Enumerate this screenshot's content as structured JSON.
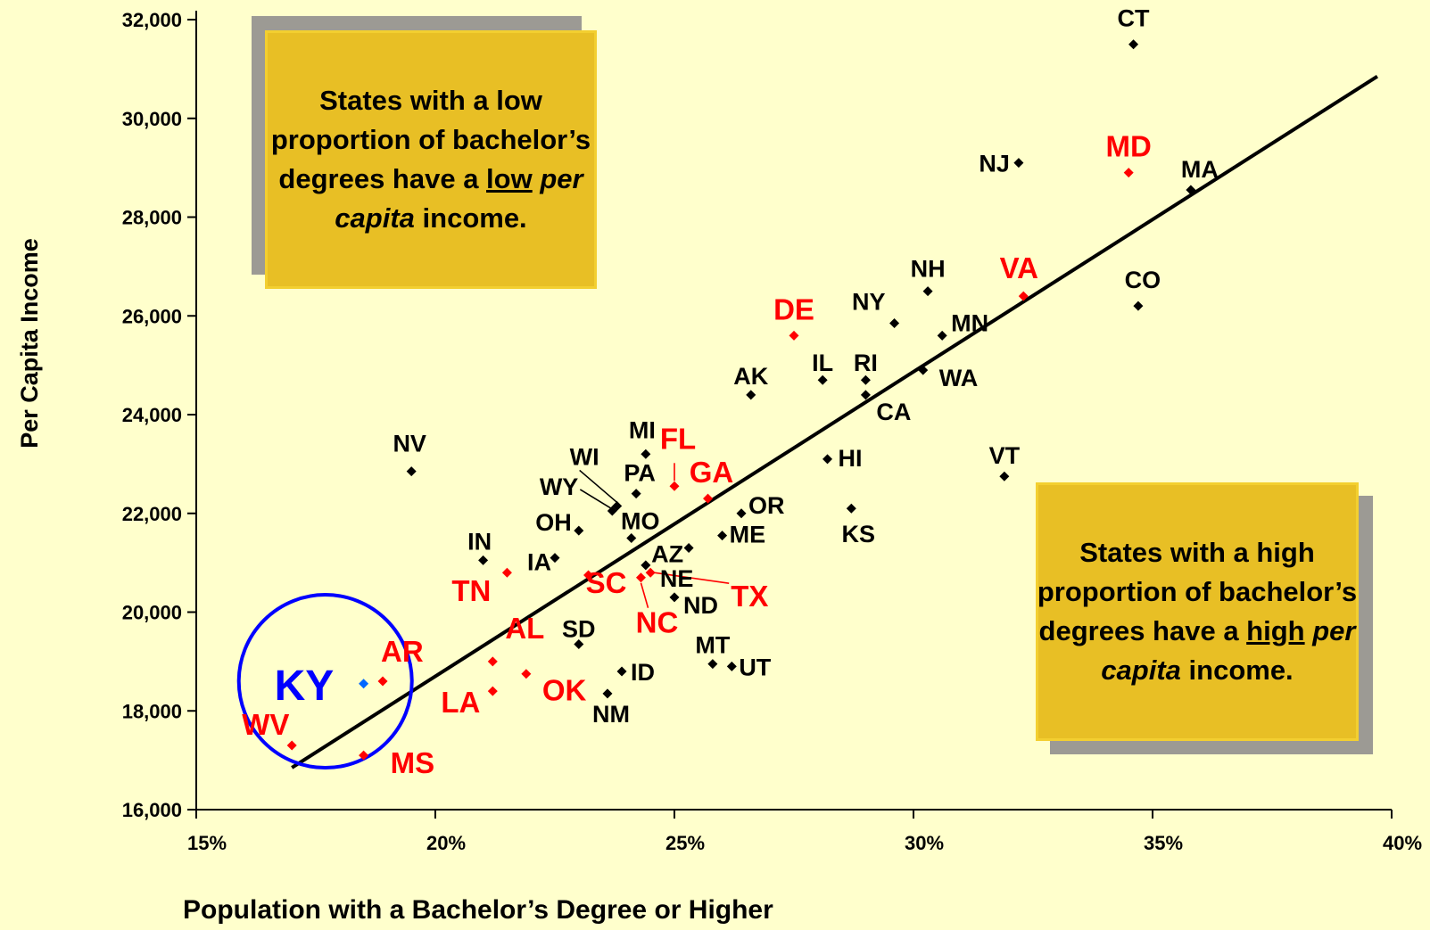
{
  "chart_data": {
    "type": "scatter",
    "xlabel": "Population with a Bachelor’s Degree or Higher",
    "ylabel": "Per  Capita  Income",
    "xlim": [
      15,
      40
    ],
    "ylim": [
      16000,
      32000
    ],
    "x_ticks": [
      15,
      20,
      25,
      30,
      35,
      40
    ],
    "x_tick_labels": [
      "15%",
      "20%",
      "25%",
      "30%",
      "35%",
      "40%"
    ],
    "y_ticks": [
      16000,
      18000,
      20000,
      22000,
      24000,
      26000,
      28000,
      30000,
      32000
    ],
    "y_tick_labels": [
      "16,000",
      "18,000",
      "20,000",
      "22,000",
      "24,000",
      "26,000",
      "28,000",
      "30,000",
      "32,000"
    ],
    "grid": false,
    "trendline": {
      "x": [
        17,
        39.7
      ],
      "y": [
        16850,
        30850
      ],
      "color": "#000000"
    },
    "highlight": {
      "state": "KY",
      "label": "KY",
      "center": [
        17.7,
        18600
      ],
      "color": "#0000ff"
    },
    "colors": {
      "black": "#000000",
      "south": "#ff0000",
      "focus": "#0066ff"
    },
    "points": [
      {
        "label": "CT",
        "x": 34.6,
        "y": 31500,
        "group": "black"
      },
      {
        "label": "NJ",
        "x": 32.2,
        "y": 29100,
        "group": "black"
      },
      {
        "label": "MD",
        "x": 34.5,
        "y": 28900,
        "group": "south"
      },
      {
        "label": "MA",
        "x": 35.8,
        "y": 28550,
        "group": "black"
      },
      {
        "label": "NH",
        "x": 30.3,
        "y": 26500,
        "group": "black"
      },
      {
        "label": "VA",
        "x": 32.3,
        "y": 26400,
        "group": "south"
      },
      {
        "label": "CO",
        "x": 34.7,
        "y": 26200,
        "group": "black"
      },
      {
        "label": "NY",
        "x": 29.6,
        "y": 25850,
        "group": "black"
      },
      {
        "label": "MN",
        "x": 30.6,
        "y": 25600,
        "group": "black"
      },
      {
        "label": "DE",
        "x": 27.5,
        "y": 25600,
        "group": "south"
      },
      {
        "label": "WA",
        "x": 30.2,
        "y": 24900,
        "group": "black"
      },
      {
        "label": "IL",
        "x": 28.1,
        "y": 24700,
        "group": "black"
      },
      {
        "label": "RI",
        "x": 29.0,
        "y": 24700,
        "group": "black"
      },
      {
        "label": "CA",
        "x": 29.0,
        "y": 24400,
        "group": "black"
      },
      {
        "label": "AK",
        "x": 26.6,
        "y": 24400,
        "group": "black"
      },
      {
        "label": "MI",
        "x": 24.4,
        "y": 23200,
        "group": "black"
      },
      {
        "label": "HI",
        "x": 28.2,
        "y": 23100,
        "group": "black"
      },
      {
        "label": "NV",
        "x": 19.5,
        "y": 22850,
        "group": "black"
      },
      {
        "label": "VT",
        "x": 31.9,
        "y": 22750,
        "group": "black"
      },
      {
        "label": "FL",
        "x": 25.0,
        "y": 22550,
        "group": "south"
      },
      {
        "label": "PA",
        "x": 24.2,
        "y": 22400,
        "group": "black"
      },
      {
        "label": "GA",
        "x": 25.7,
        "y": 22300,
        "group": "south"
      },
      {
        "label": "WI",
        "x": 23.8,
        "y": 22150,
        "group": "black"
      },
      {
        "label": "WY",
        "x": 23.7,
        "y": 22050,
        "group": "black"
      },
      {
        "label": "KS",
        "x": 28.7,
        "y": 22100,
        "group": "black"
      },
      {
        "label": "OR",
        "x": 26.4,
        "y": 22000,
        "group": "black"
      },
      {
        "label": "OH",
        "x": 23.0,
        "y": 21650,
        "group": "black"
      },
      {
        "label": "ME",
        "x": 26.0,
        "y": 21550,
        "group": "black"
      },
      {
        "label": "MO",
        "x": 24.1,
        "y": 21500,
        "group": "black"
      },
      {
        "label": "AZ",
        "x": 25.3,
        "y": 21300,
        "group": "black"
      },
      {
        "label": "IA",
        "x": 22.5,
        "y": 21100,
        "group": "black"
      },
      {
        "label": "IN",
        "x": 21.0,
        "y": 21050,
        "group": "black"
      },
      {
        "label": "NE",
        "x": 24.4,
        "y": 20950,
        "group": "black"
      },
      {
        "label": "TX",
        "x": 24.5,
        "y": 20800,
        "group": "south"
      },
      {
        "label": "TN",
        "x": 21.5,
        "y": 20800,
        "group": "south"
      },
      {
        "label": "SC",
        "x": 23.2,
        "y": 20750,
        "group": "south"
      },
      {
        "label": "NC",
        "x": 24.3,
        "y": 20700,
        "group": "south"
      },
      {
        "label": "ND",
        "x": 25.0,
        "y": 20300,
        "group": "black"
      },
      {
        "label": "SD",
        "x": 23.0,
        "y": 19350,
        "group": "black"
      },
      {
        "label": "AL",
        "x": 21.2,
        "y": 19000,
        "group": "south"
      },
      {
        "label": "MT",
        "x": 25.8,
        "y": 18950,
        "group": "black"
      },
      {
        "label": "UT",
        "x": 26.2,
        "y": 18900,
        "group": "black"
      },
      {
        "label": "ID",
        "x": 23.9,
        "y": 18800,
        "group": "black"
      },
      {
        "label": "OK",
        "x": 21.9,
        "y": 18750,
        "group": "south"
      },
      {
        "label": "AR",
        "x": 18.9,
        "y": 18600,
        "group": "south"
      },
      {
        "label": "KY",
        "x": 18.5,
        "y": 18550,
        "group": "focus"
      },
      {
        "label": "LA",
        "x": 21.2,
        "y": 18400,
        "group": "south"
      },
      {
        "label": "NM",
        "x": 23.6,
        "y": 18350,
        "group": "black"
      },
      {
        "label": "WV",
        "x": 17.0,
        "y": 17300,
        "group": "south"
      },
      {
        "label": "MS",
        "x": 18.5,
        "y": 17100,
        "group": "south"
      }
    ]
  },
  "callouts": {
    "low": {
      "prefix": "States with a low proportion of bachelor’s degrees have a ",
      "emph": "low",
      "italic": "per capita",
      "suffix": "income."
    },
    "high": {
      "prefix": "States with a high proportion of bachelor’s degrees have a ",
      "emph": "high",
      "italic": "per capita",
      "suffix": "income."
    }
  }
}
